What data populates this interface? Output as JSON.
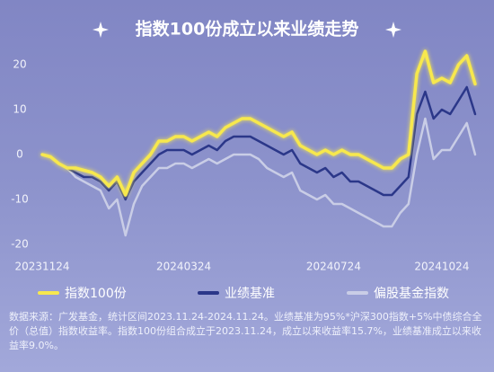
{
  "chart_data": {
    "type": "line",
    "title": "指数100份成立以来业绩走势",
    "categories": [
      "20231124",
      null,
      null,
      null,
      null,
      null,
      null,
      null,
      null,
      null,
      null,
      null,
      null,
      null,
      null,
      null,
      null,
      "20240324",
      null,
      null,
      null,
      null,
      null,
      null,
      null,
      null,
      null,
      null,
      null,
      null,
      null,
      null,
      null,
      null,
      null,
      "20240724",
      null,
      null,
      null,
      null,
      null,
      null,
      null,
      null,
      null,
      null,
      null,
      null,
      "20241024",
      null,
      null,
      null,
      null
    ],
    "series": [
      {
        "name": "指数100份",
        "color": "#f7e84e",
        "values": [
          0,
          -0.5,
          -2,
          -3,
          -3,
          -3.5,
          -4,
          -5,
          -7,
          -5,
          -9,
          -4,
          -2,
          0,
          3,
          3,
          4,
          4,
          3,
          4,
          5,
          4,
          6,
          7,
          8,
          8,
          7,
          6,
          5,
          4,
          5,
          2,
          1,
          0,
          1,
          0,
          1,
          0,
          0,
          -1,
          -2,
          -3,
          -3,
          -1,
          0,
          18,
          23,
          16,
          17,
          16,
          20,
          22,
          15.7
        ]
      },
      {
        "name": "业绩基准",
        "color": "#2b3789",
        "values": [
          0,
          -0.5,
          -2,
          -3,
          -4,
          -5,
          -5,
          -6,
          -8,
          -6,
          -10,
          -6,
          -4,
          -2,
          0,
          1,
          1,
          1,
          0,
          1,
          2,
          1,
          3,
          4,
          4,
          4,
          3,
          2,
          1,
          0,
          1,
          -2,
          -3,
          -4,
          -3,
          -5,
          -4,
          -6,
          -6,
          -7,
          -8,
          -9,
          -9,
          -7,
          -5,
          9,
          14,
          8,
          10,
          9,
          12,
          15,
          9
        ]
      },
      {
        "name": "偏股基金指数",
        "color": "#c9cde6",
        "values": [
          0,
          -0.5,
          -2,
          -3,
          -5,
          -6,
          -7,
          -8,
          -12,
          -10,
          -18,
          -11,
          -7,
          -5,
          -3,
          -3,
          -2,
          -2,
          -3,
          -2,
          -1,
          -2,
          -1,
          0,
          0,
          0,
          -1,
          -3,
          -4,
          -5,
          -4,
          -8,
          -9,
          -10,
          -9,
          -11,
          -11,
          -12,
          -13,
          -14,
          -15,
          -16,
          -16,
          -13,
          -11,
          0,
          8,
          -1,
          1,
          1,
          4,
          7,
          0
        ]
      }
    ],
    "ylim": [
      -21,
      24
    ],
    "yticks": [
      20,
      10,
      0,
      -10,
      -20
    ],
    "grid": false,
    "source_note": "数据来源：广发基金，统计区间2023.11.24-2024.11.24。业绩基准为95%*沪深300指数+5%中债综合全价（总值）指数收益率。指数100份组合成立于2023.11.24，成立以来收益率15.7%，业绩基准成立以来收益率9.0%。"
  }
}
